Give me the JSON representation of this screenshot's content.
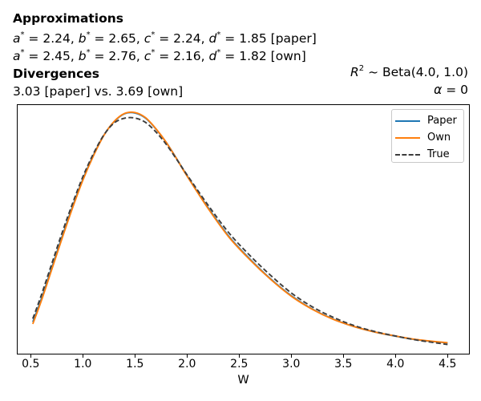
{
  "header": {
    "approx_title": "Approximations",
    "approx_lines": [
      {
        "params": [
          {
            "name": "a",
            "value": "2.24"
          },
          {
            "name": "b",
            "value": "2.65"
          },
          {
            "name": "c",
            "value": "2.24"
          },
          {
            "name": "d",
            "value": "1.85"
          }
        ],
        "tag": "[paper]"
      },
      {
        "params": [
          {
            "name": "a",
            "value": "2.45"
          },
          {
            "name": "b",
            "value": "2.76"
          },
          {
            "name": "c",
            "value": "2.16"
          },
          {
            "name": "d",
            "value": "1.82"
          }
        ],
        "tag": "[own]"
      }
    ],
    "divergences_title": "Divergences",
    "divergences_text": "3.03 [paper] vs. 3.69 [own]"
  },
  "side_annotations": [
    {
      "var": "R",
      "sup": "2",
      "sep": " ~  ",
      "rest": "Beta(4.0, 1.0)"
    },
    {
      "var": "α",
      "sup": "",
      "sep": " = ",
      "rest": "0"
    }
  ],
  "chart_data": {
    "type": "line",
    "title": "",
    "xlabel": "W",
    "ylabel": "",
    "y_axis_unlabeled": true,
    "y_units": "density (no y ticks shown; values are fractions of plot height)",
    "xlim": [
      0.37,
      4.71
    ],
    "ylim": [
      0,
      1
    ],
    "grid": false,
    "x_ticks": [
      {
        "value": 0.5,
        "label": "0.5"
      },
      {
        "value": 1.0,
        "label": "1.0"
      },
      {
        "value": 1.5,
        "label": "1.5"
      },
      {
        "value": 2.0,
        "label": "2.0"
      },
      {
        "value": 2.5,
        "label": "2.5"
      },
      {
        "value": 3.0,
        "label": "3.0"
      },
      {
        "value": 3.5,
        "label": "3.5"
      },
      {
        "value": 4.0,
        "label": "4.0"
      },
      {
        "value": 4.5,
        "label": "4.5"
      }
    ],
    "x": [
      0.52,
      0.6,
      0.7,
      0.8,
      0.9,
      1.0,
      1.1,
      1.2,
      1.3,
      1.4,
      1.5,
      1.6,
      1.7,
      1.8,
      1.9,
      2.0,
      2.2,
      2.4,
      2.6,
      2.8,
      3.0,
      3.2,
      3.4,
      3.6,
      3.8,
      4.0,
      4.2,
      4.5
    ],
    "peak_x": 1.47,
    "series": [
      {
        "name": "Paper",
        "color": "#1f77b4",
        "style": "solid",
        "values": [
          0.13,
          0.22,
          0.345,
          0.47,
          0.59,
          0.7,
          0.795,
          0.875,
          0.93,
          0.962,
          0.965,
          0.945,
          0.902,
          0.848,
          0.783,
          0.715,
          0.588,
          0.473,
          0.383,
          0.303,
          0.235,
          0.182,
          0.142,
          0.112,
          0.09,
          0.073,
          0.059,
          0.046
        ]
      },
      {
        "name": "Own",
        "color": "#ff7f0e",
        "style": "solid",
        "values": [
          0.122,
          0.212,
          0.337,
          0.463,
          0.584,
          0.696,
          0.792,
          0.874,
          0.931,
          0.963,
          0.967,
          0.947,
          0.903,
          0.848,
          0.782,
          0.713,
          0.585,
          0.47,
          0.38,
          0.301,
          0.233,
          0.181,
          0.141,
          0.112,
          0.09,
          0.074,
          0.06,
          0.047
        ]
      },
      {
        "name": "True",
        "color": "#3d3d3d",
        "style": "dashed",
        "values": [
          0.143,
          0.235,
          0.36,
          0.485,
          0.602,
          0.71,
          0.801,
          0.876,
          0.925,
          0.944,
          0.945,
          0.928,
          0.89,
          0.84,
          0.78,
          0.718,
          0.598,
          0.487,
          0.397,
          0.317,
          0.246,
          0.191,
          0.149,
          0.116,
          0.092,
          0.074,
          0.058,
          0.04
        ]
      }
    ],
    "legend": {
      "position": "upper right",
      "entries": [
        "Paper",
        "Own",
        "True"
      ]
    }
  }
}
